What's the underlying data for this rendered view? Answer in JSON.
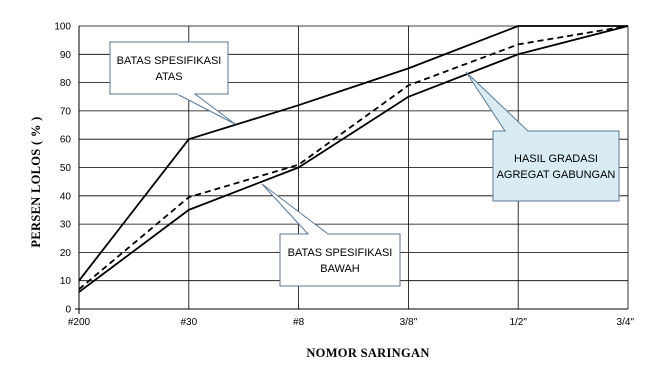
{
  "chart_data": {
    "type": "line",
    "title": "",
    "xlabel": "NOMOR SARINGAN",
    "ylabel": "PERSEN LOLOS ( % )",
    "categories": [
      "#200",
      "#30",
      "#8",
      "3/8\"",
      "1/2\"",
      "3/4\""
    ],
    "ylim": [
      0,
      100
    ],
    "yticks": [
      0,
      10,
      20,
      30,
      40,
      50,
      60,
      70,
      80,
      90,
      100
    ],
    "grid": true,
    "series": [
      {
        "name": "BATAS SPESIFIKASI ATAS",
        "values": [
          10,
          60,
          72,
          85,
          100,
          100
        ],
        "style": "solid"
      },
      {
        "name": "BATAS SPESIFIKASI BAWAH",
        "values": [
          6,
          35,
          50,
          75,
          90,
          100
        ],
        "style": "solid"
      },
      {
        "name": "HASIL GRADASI AGREGAT GABUNGAN",
        "values": [
          7,
          39.5,
          51,
          79,
          93.5,
          100
        ],
        "style": "dashed"
      }
    ],
    "annotations": [
      {
        "lines": [
          "BATAS  SPESIFIKASI",
          "ATAS"
        ],
        "series": 0
      },
      {
        "lines": [
          "BATAS  SPESIFIKASI",
          "BAWAH"
        ],
        "series": 1
      },
      {
        "lines": [
          "HASIL  GRADASI",
          "AGREGAT GABUNGAN"
        ],
        "series": 2
      }
    ],
    "colors": {
      "line": "#000000",
      "grid": "#000000",
      "callout_fill": "#ffffff",
      "callout_highlight_fill": "#d9ebf3",
      "callout_border": "#5a7a96"
    }
  }
}
